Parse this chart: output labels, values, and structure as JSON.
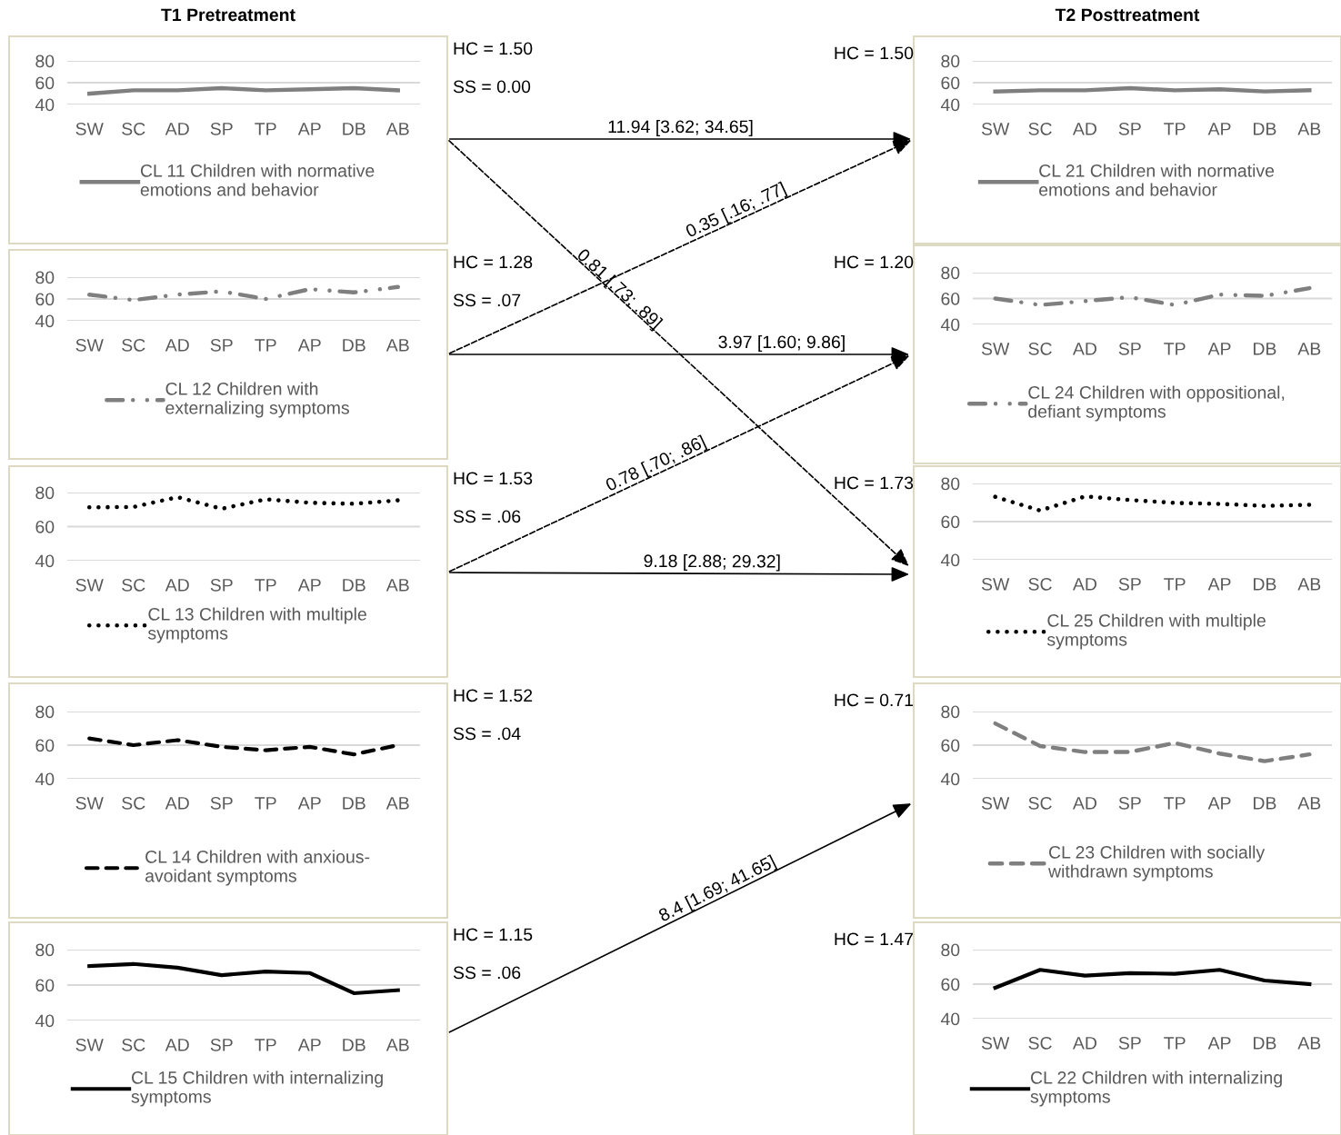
{
  "chart_data": [
    {
      "type": "line",
      "title": "T1 Pretreatment",
      "categories": [
        "SW",
        "SC",
        "AD",
        "SP",
        "TP",
        "AP",
        "DB",
        "AB"
      ],
      "ylim": [
        40,
        80
      ],
      "yticks": [
        40,
        60,
        80
      ],
      "grid": "y",
      "legend": "bottom",
      "series": [
        {
          "name": "CL 11 Children with normative\nemotions and behavior",
          "color": "#7f7f7f",
          "line_style": "solid",
          "values": [
            50,
            53,
            53,
            55,
            53,
            54,
            55,
            53
          ]
        }
      ],
      "annotations": [
        "HC = 1.50",
        "SS = 0.00",
        "11.94 [3.62; 34.65]",
        "0.81 [.73; .89]"
      ]
    },
    {
      "type": "line",
      "title": "T2 Posttreatment",
      "categories": [
        "SW",
        "SC",
        "AD",
        "SP",
        "TP",
        "AP",
        "DB",
        "AB"
      ],
      "ylim": [
        40,
        80
      ],
      "yticks": [
        40,
        60,
        80
      ],
      "grid": "y",
      "legend": "bottom",
      "series": [
        {
          "name": "CL 21 Children with normative\nemotions and behavior",
          "color": "#7f7f7f",
          "line_style": "solid",
          "values": [
            52,
            53,
            53,
            55,
            53,
            54,
            52,
            53
          ]
        }
      ],
      "annotations": [
        "HC = 1.50"
      ]
    },
    {
      "type": "line",
      "categories": [
        "SW",
        "SC",
        "AD",
        "SP",
        "TP",
        "AP",
        "DB",
        "AB"
      ],
      "ylim": [
        40,
        80
      ],
      "yticks": [
        40,
        60,
        80
      ],
      "grid": "y",
      "legend": "bottom",
      "series": [
        {
          "name": "CL 12 Children with\nexternalizing symptoms",
          "color": "#7f7f7f",
          "line_style": "dashdot",
          "values": [
            64,
            59,
            64,
            67,
            60,
            69,
            66,
            71
          ]
        }
      ],
      "annotations": [
        "HC = 1.28",
        "SS = .07",
        "0.35 [.16; .77]",
        "3.97 [1.60; 9.86]"
      ]
    },
    {
      "type": "line",
      "categories": [
        "SW",
        "SC",
        "AD",
        "SP",
        "TP",
        "AP",
        "DB",
        "AB"
      ],
      "ylim": [
        40,
        80
      ],
      "yticks": [
        40,
        60,
        80
      ],
      "grid": "y",
      "legend": "bottom",
      "series": [
        {
          "name": "CL 24 Children with oppositional,\ndefiant symptoms",
          "color": "#7f7f7f",
          "line_style": "dashdot",
          "values": [
            60,
            55,
            58,
            61,
            55,
            63,
            62,
            68
          ]
        }
      ],
      "annotations": [
        "HC = 1.20"
      ]
    },
    {
      "type": "line",
      "categories": [
        "SW",
        "SC",
        "AD",
        "SP",
        "TP",
        "AP",
        "DB",
        "AB"
      ],
      "ylim": [
        40,
        80
      ],
      "yticks": [
        40,
        60,
        80
      ],
      "grid": "y",
      "legend": "bottom",
      "series": [
        {
          "name": "CL 13 Children with multiple\nsymptoms",
          "color": "#000000",
          "line_style": "dotted",
          "values": [
            71.3,
            71.5,
            77.3,
            70.5,
            76,
            74,
            73.4,
            75.4
          ]
        }
      ],
      "annotations": [
        "HC = 1.53",
        "SS = .06",
        "0.78 [.70; .86]",
        "9.18 [2.88; 29.32]"
      ]
    },
    {
      "type": "line",
      "categories": [
        "SW",
        "SC",
        "AD",
        "SP",
        "TP",
        "AP",
        "DB",
        "AB"
      ],
      "ylim": [
        40,
        80
      ],
      "yticks": [
        40,
        60,
        80
      ],
      "grid": "y",
      "legend": "bottom",
      "series": [
        {
          "name": "CL 25 Children with multiple\nsymptoms",
          "color": "#000000",
          "line_style": "dotted",
          "values": [
            73,
            65.8,
            73.2,
            71.3,
            69.8,
            69.3,
            68.2,
            68.8
          ]
        }
      ],
      "annotations": [
        "HC = 1.73"
      ]
    },
    {
      "type": "line",
      "categories": [
        "SW",
        "SC",
        "AD",
        "SP",
        "TP",
        "AP",
        "DB",
        "AB"
      ],
      "ylim": [
        40,
        80
      ],
      "yticks": [
        40,
        60,
        80
      ],
      "grid": "y",
      "legend": "bottom",
      "series": [
        {
          "name": "CL 14 Children with anxious-\navoidant symptoms",
          "color": "#000000",
          "line_style": "dashed",
          "values": [
            64,
            60,
            63,
            59,
            57,
            59,
            54.5,
            60
          ]
        }
      ],
      "annotations": [
        "HC = 1.52",
        "SS = .04"
      ]
    },
    {
      "type": "line",
      "categories": [
        "SW",
        "SC",
        "AD",
        "SP",
        "TP",
        "AP",
        "DB",
        "AB"
      ],
      "ylim": [
        40,
        80
      ],
      "yticks": [
        40,
        60,
        80
      ],
      "grid": "y",
      "legend": "bottom",
      "series": [
        {
          "name": "CL 23 Children with socially\nwithdrawn symptoms",
          "color": "#7f7f7f",
          "line_style": "dashed",
          "values": [
            72.9,
            59.5,
            55.9,
            56,
            61.3,
            55,
            50.5,
            54.5
          ]
        }
      ],
      "annotations": [
        "HC = 0.71"
      ]
    },
    {
      "type": "line",
      "categories": [
        "SW",
        "SC",
        "AD",
        "SP",
        "TP",
        "AP",
        "DB",
        "AB"
      ],
      "ylim": [
        40,
        80
      ],
      "yticks": [
        40,
        60,
        80
      ],
      "grid": "y",
      "legend": "bottom",
      "series": [
        {
          "name": "CL 15 Children with internalizing\nsymptoms",
          "color": "#000000",
          "line_style": "solid",
          "values": [
            70.7,
            71.9,
            69.8,
            65.6,
            67.6,
            66.8,
            55.4,
            57.1
          ]
        }
      ],
      "annotations": [
        "HC = 1.15",
        "SS = .06",
        "8.4 [1.69; 41.65]"
      ]
    },
    {
      "type": "line",
      "categories": [
        "SW",
        "SC",
        "AD",
        "SP",
        "TP",
        "AP",
        "DB",
        "AB"
      ],
      "ylim": [
        40,
        80
      ],
      "yticks": [
        40,
        60,
        80
      ],
      "grid": "y",
      "legend": "bottom",
      "series": [
        {
          "name": "CL 22 Children with internalizing\nsymptoms",
          "color": "#000000",
          "line_style": "solid",
          "values": [
            57.9,
            68.3,
            64.9,
            66.4,
            66,
            68.3,
            62.1,
            60
          ]
        }
      ],
      "annotations": [
        "HC = 1.47"
      ]
    }
  ]
}
